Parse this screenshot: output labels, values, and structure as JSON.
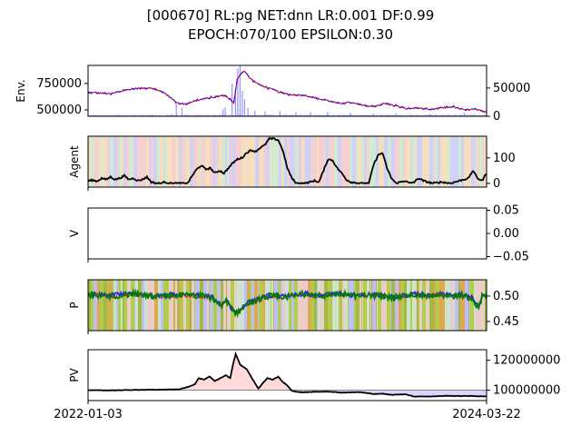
{
  "title_line1": "[000670] RL:pg NET:dnn LR:0.001 DF:0.99",
  "title_line2": "EPOCH:070/100 EPSILON:0.30",
  "x_start_label": "2022-01-03",
  "x_end_label": "2024-03-22",
  "chart_data": [
    {
      "type": "line",
      "panel": "env",
      "ylabel": "Env.",
      "ylim": [
        440000,
        920000
      ],
      "yticks": [
        500000,
        750000
      ],
      "y2lim": [
        0,
        90000
      ],
      "y2ticks": [
        0,
        50000
      ],
      "series_keypoints": {
        "price": [
          [
            0,
            665000
          ],
          [
            10,
            660000
          ],
          [
            20,
            650000
          ],
          [
            30,
            680000
          ],
          [
            40,
            700000
          ],
          [
            55,
            710000
          ],
          [
            63,
            680000
          ],
          [
            70,
            640000
          ],
          [
            75,
            590000
          ],
          [
            80,
            560000
          ],
          [
            85,
            555000
          ],
          [
            92,
            580000
          ],
          [
            100,
            600000
          ],
          [
            110,
            620000
          ],
          [
            120,
            640000
          ],
          [
            125,
            600000
          ],
          [
            128,
            560000
          ],
          [
            131,
            790000
          ],
          [
            134,
            840000
          ],
          [
            137,
            870000
          ],
          [
            142,
            800000
          ],
          [
            150,
            740000
          ],
          [
            160,
            700000
          ],
          [
            170,
            660000
          ],
          [
            180,
            640000
          ],
          [
            190,
            640000
          ],
          [
            200,
            610000
          ],
          [
            210,
            590000
          ],
          [
            220,
            560000
          ],
          [
            230,
            570000
          ],
          [
            240,
            545000
          ],
          [
            250,
            530000
          ],
          [
            260,
            560000
          ],
          [
            270,
            540000
          ],
          [
            280,
            510000
          ],
          [
            290,
            520000
          ],
          [
            300,
            500000
          ],
          [
            310,
            520000
          ],
          [
            320,
            530000
          ],
          [
            330,
            500000
          ],
          [
            340,
            505000
          ],
          [
            349,
            480000
          ]
        ],
        "volume_spikes": [
          [
            73,
            4000
          ],
          [
            77,
            22000
          ],
          [
            82,
            15000
          ],
          [
            118,
            12000
          ],
          [
            120,
            16000
          ],
          [
            126,
            58000
          ],
          [
            129,
            40000
          ],
          [
            131,
            85000
          ],
          [
            133,
            90000
          ],
          [
            135,
            45000
          ],
          [
            137,
            30000
          ],
          [
            140,
            15000
          ],
          [
            146,
            10000
          ],
          [
            155,
            8000
          ],
          [
            168,
            9000
          ],
          [
            182,
            7000
          ],
          [
            195,
            7000
          ],
          [
            210,
            8000
          ],
          [
            230,
            6000
          ],
          [
            250,
            5000
          ],
          [
            270,
            5000
          ],
          [
            300,
            4000
          ],
          [
            330,
            6000
          ]
        ]
      }
    },
    {
      "type": "line",
      "panel": "agent",
      "ylabel": "Agent",
      "ylim": [
        -15,
        185
      ],
      "yticks": [
        0,
        100
      ],
      "series_keypoints": [
        [
          0,
          10
        ],
        [
          5,
          12
        ],
        [
          10,
          8
        ],
        [
          15,
          20
        ],
        [
          20,
          15
        ],
        [
          25,
          25
        ],
        [
          30,
          15
        ],
        [
          35,
          20
        ],
        [
          40,
          30
        ],
        [
          45,
          15
        ],
        [
          50,
          20
        ],
        [
          55,
          10
        ],
        [
          60,
          15
        ],
        [
          65,
          25
        ],
        [
          70,
          5
        ],
        [
          75,
          0
        ],
        [
          80,
          0
        ],
        [
          85,
          5
        ],
        [
          90,
          0
        ],
        [
          100,
          0
        ],
        [
          110,
          0
        ],
        [
          115,
          30
        ],
        [
          120,
          55
        ],
        [
          125,
          70
        ],
        [
          130,
          55
        ],
        [
          135,
          60
        ],
        [
          140,
          40
        ],
        [
          145,
          50
        ],
        [
          150,
          40
        ],
        [
          155,
          60
        ],
        [
          160,
          80
        ],
        [
          165,
          95
        ],
        [
          170,
          100
        ],
        [
          175,
          120
        ],
        [
          180,
          130
        ],
        [
          185,
          125
        ],
        [
          190,
          140
        ],
        [
          195,
          150
        ],
        [
          200,
          175
        ],
        [
          205,
          175
        ],
        [
          210,
          170
        ],
        [
          215,
          130
        ],
        [
          220,
          60
        ],
        [
          225,
          20
        ],
        [
          230,
          0
        ],
        [
          240,
          0
        ],
        [
          250,
          10
        ],
        [
          255,
          5
        ],
        [
          260,
          50
        ],
        [
          265,
          95
        ],
        [
          270,
          90
        ],
        [
          275,
          60
        ],
        [
          280,
          40
        ],
        [
          285,
          15
        ],
        [
          290,
          5
        ],
        [
          300,
          0
        ],
        [
          310,
          0
        ],
        [
          315,
          70
        ],
        [
          320,
          110
        ],
        [
          325,
          120
        ],
        [
          330,
          60
        ],
        [
          335,
          20
        ],
        [
          340,
          0
        ],
        [
          350,
          10
        ],
        [
          355,
          0
        ],
        [
          360,
          5
        ],
        [
          365,
          20
        ],
        [
          370,
          10
        ],
        [
          380,
          0
        ],
        [
          390,
          5
        ],
        [
          400,
          0
        ],
        [
          410,
          10
        ],
        [
          420,
          20
        ],
        [
          425,
          50
        ],
        [
          430,
          20
        ],
        [
          435,
          10
        ],
        [
          440,
          40
        ]
      ]
    },
    {
      "type": "line",
      "panel": "v",
      "ylabel": "V",
      "ylim": [
        -0.055,
        0.055
      ],
      "yticks": [
        -0.05,
        0.0,
        0.05
      ],
      "ytick_labels": [
        "−0.05",
        "0.00",
        "0.05"
      ]
    },
    {
      "type": "line",
      "panel": "p",
      "ylabel": "P",
      "ylim": [
        0.432,
        0.532
      ],
      "yticks": [
        0.45,
        0.5
      ],
      "ytick_labels": [
        "0.45",
        "0.50"
      ],
      "series_keypoints": [
        [
          0,
          0.503
        ],
        [
          20,
          0.5
        ],
        [
          40,
          0.504
        ],
        [
          60,
          0.498
        ],
        [
          70,
          0.5
        ],
        [
          80,
          0.502
        ],
        [
          100,
          0.5
        ],
        [
          110,
          0.496
        ],
        [
          118,
          0.48
        ],
        [
          122,
          0.492
        ],
        [
          126,
          0.478
        ],
        [
          130,
          0.465
        ],
        [
          134,
          0.472
        ],
        [
          140,
          0.485
        ],
        [
          150,
          0.492
        ],
        [
          160,
          0.5
        ],
        [
          170,
          0.498
        ],
        [
          180,
          0.5
        ],
        [
          190,
          0.504
        ],
        [
          200,
          0.502
        ],
        [
          210,
          0.5
        ],
        [
          220,
          0.505
        ],
        [
          230,
          0.502
        ],
        [
          240,
          0.5
        ],
        [
          250,
          0.502
        ],
        [
          260,
          0.5
        ],
        [
          270,
          0.497
        ],
        [
          280,
          0.5
        ],
        [
          290,
          0.503
        ],
        [
          300,
          0.5
        ],
        [
          310,
          0.504
        ],
        [
          320,
          0.5
        ],
        [
          330,
          0.502
        ],
        [
          340,
          0.495
        ],
        [
          345,
          0.475
        ],
        [
          348,
          0.5
        ],
        [
          352,
          0.502
        ]
      ]
    },
    {
      "type": "area",
      "panel": "pv",
      "ylabel": "PV",
      "ylim": [
        93000000,
        127000000
      ],
      "yticks": [
        100000000,
        120000000
      ],
      "baseline": 100000000,
      "series_keypoints": [
        [
          0,
          100000000
        ],
        [
          20,
          99800000
        ],
        [
          40,
          100000000
        ],
        [
          60,
          100200000
        ],
        [
          80,
          100300000
        ],
        [
          100,
          100500000
        ],
        [
          110,
          102000000
        ],
        [
          118,
          104000000
        ],
        [
          122,
          108000000
        ],
        [
          128,
          107000000
        ],
        [
          134,
          109000000
        ],
        [
          140,
          106000000
        ],
        [
          146,
          108000000
        ],
        [
          152,
          110000000
        ],
        [
          157,
          108000000
        ],
        [
          160,
          117000000
        ],
        [
          163,
          124000000
        ],
        [
          168,
          117000000
        ],
        [
          175,
          114000000
        ],
        [
          180,
          109000000
        ],
        [
          185,
          104000000
        ],
        [
          188,
          101000000
        ],
        [
          192,
          104000000
        ],
        [
          198,
          108000000
        ],
        [
          204,
          107000000
        ],
        [
          210,
          109000000
        ],
        [
          214,
          106000000
        ],
        [
          220,
          103000000
        ],
        [
          225,
          99500000
        ],
        [
          235,
          98500000
        ],
        [
          250,
          98800000
        ],
        [
          265,
          99000000
        ],
        [
          280,
          98300000
        ],
        [
          290,
          98500000
        ],
        [
          300,
          98600000
        ],
        [
          315,
          97400000
        ],
        [
          325,
          97600000
        ],
        [
          335,
          96800000
        ],
        [
          350,
          97200000
        ],
        [
          360,
          95700000
        ],
        [
          380,
          95800000
        ],
        [
          395,
          96200000
        ],
        [
          410,
          96000000
        ],
        [
          420,
          96100000
        ],
        [
          440,
          95800000
        ]
      ]
    }
  ]
}
